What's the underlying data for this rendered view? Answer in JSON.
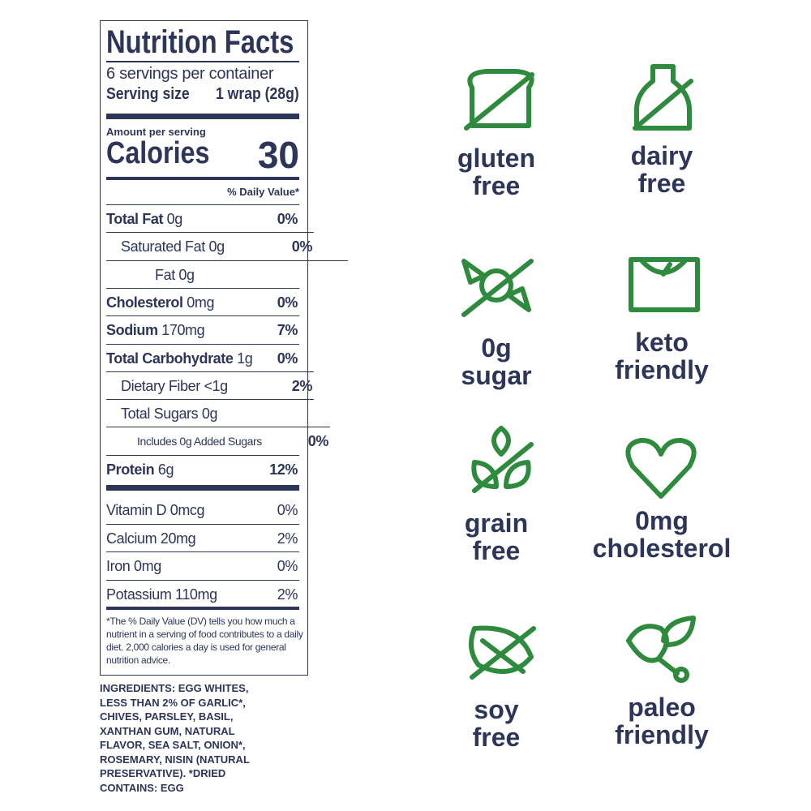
{
  "nutrition": {
    "title": "Nutrition Facts",
    "servings": "6 servings per container",
    "serving_size_label": "Serving size",
    "serving_size": "1 wrap (28g)",
    "amount_per_serving": "Amount per serving",
    "calories_label": "Calories",
    "calories": "30",
    "daily_value_header": "% Daily Value*",
    "rows": [
      {
        "name": "Total Fat",
        "amount": "0g",
        "dv": "0%"
      },
      {
        "name": "Saturated Fat",
        "amount": "0g",
        "dv": "0%"
      },
      {
        "name": "Fat",
        "amount": "0g"
      },
      {
        "name": "Cholesterol",
        "amount": "0mg",
        "dv": "0%"
      },
      {
        "name": "Sodium",
        "amount": "170mg",
        "dv": "7%"
      },
      {
        "name": "Total Carbohydrate",
        "amount": "1g",
        "dv": "0%"
      },
      {
        "name": "Dietary Fiber",
        "amount": "<1g",
        "dv": "2%"
      },
      {
        "name": "Total Sugars",
        "amount": "0g"
      },
      {
        "name": "Includes 0g Added Sugars",
        "dv": "0%"
      },
      {
        "name": "Protein",
        "amount": "6g",
        "dv": "12%"
      }
    ],
    "vitamins": [
      {
        "name": "Vitamin D",
        "amount": "0mcg",
        "dv": "0%"
      },
      {
        "name": "Calcium",
        "amount": "20mg",
        "dv": "2%"
      },
      {
        "name": "Iron",
        "amount": "0mg",
        "dv": "0%"
      },
      {
        "name": "Potassium",
        "amount": "110mg",
        "dv": "2%"
      }
    ],
    "footnote": "*The % Daily Value (DV) tells you how much a nutrient in a serving of food contributes to a daily diet. 2,000 calories a day is used for general nutrition advice."
  },
  "ingredients": [
    "INGREDIENTS: EGG WHITES,",
    "LESS THAN 2% OF GARLIC*,",
    "CHIVES, PARSLEY, BASIL,",
    "XANTHAN GUM, NATURAL",
    "FLAVOR, SEA SALT, ONION*,",
    "ROSEMARY, NISIN (NATURAL",
    "PRESERVATIVE). *DRIED",
    "CONTAINS: EGG"
  ],
  "badges": [
    [
      "gluten",
      "free"
    ],
    [
      "dairy",
      "free"
    ],
    [
      "0g",
      "sugar"
    ],
    [
      "keto",
      "friendly"
    ],
    [
      "grain",
      "free"
    ],
    [
      "0mg",
      "cholesterol"
    ],
    [
      "soy",
      "free"
    ],
    [
      "paleo",
      "friendly"
    ]
  ]
}
